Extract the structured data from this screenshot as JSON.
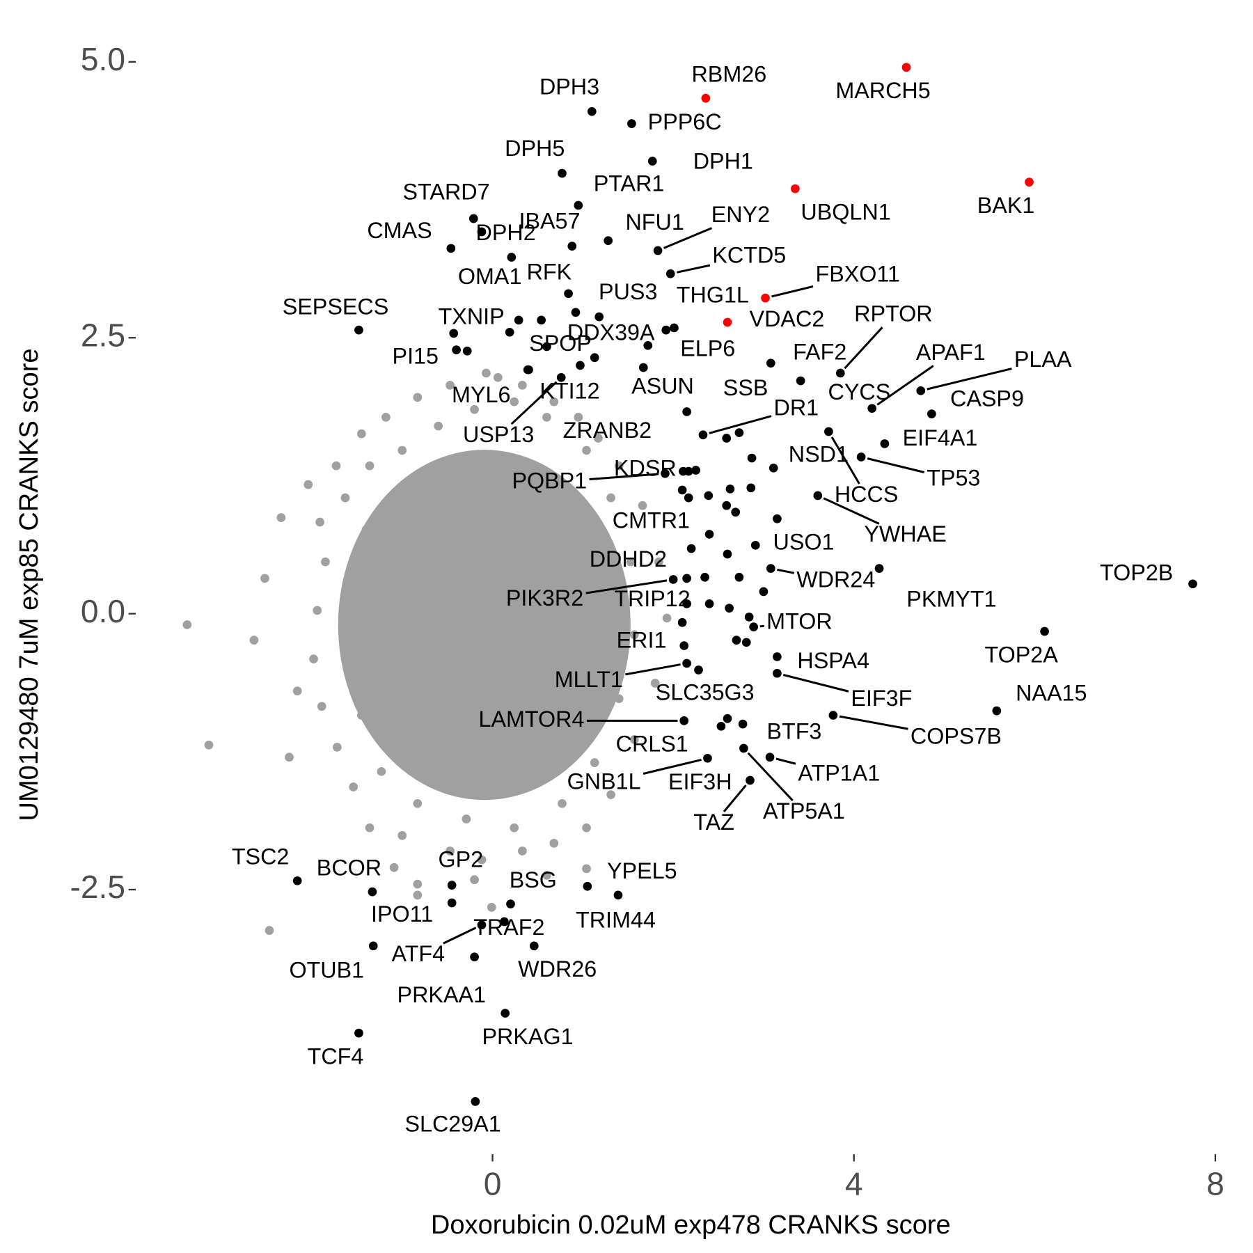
{
  "chart_data": {
    "type": "scatter",
    "xlabel": "Doxorubicin 0.02uM exp478 CRANKS score",
    "ylabel": "UM0129480 7uM exp85 CRANKS score",
    "xlim": [
      -3.94,
      8.15
    ],
    "ylim": [
      -4.81,
      5.12
    ],
    "xticks": [
      0,
      4,
      8
    ],
    "yticks": [
      {
        "value": 5,
        "label": "5.0"
      },
      2.5,
      {
        "value": 0,
        "label": "0.0"
      },
      -2.5
    ],
    "series": [
      {
        "color": "#a0a0a0",
        "x": [
          -3.38,
          -3.14,
          -2.47,
          -2.34,
          -2.04,
          -2.64,
          -2.52,
          -2.25,
          -2.16,
          -1.91,
          -1.73,
          -1.45,
          -1.18,
          -0.83,
          -0.47,
          -0.07,
          0.06,
          0.33,
          0.68,
          0.95,
          1.17,
          1.4,
          1.66,
          1.84,
          1.93,
          1.8,
          1.57,
          1.31,
          1.04,
          0.68,
          0.33,
          -0.12,
          -0.47,
          -0.83,
          -1.09,
          -1.36,
          -1.54,
          -1.72,
          -1.89,
          -1.98,
          -1.94,
          -1.85,
          -1.63,
          -1.36,
          -1.0,
          -0.6,
          -0.2,
          0.24,
          0.6,
          1.04,
          1.31,
          1.53,
          1.57,
          1.4,
          1.13,
          0.77,
          0.24,
          -0.29,
          -0.83,
          -1.23,
          -1.45,
          -1.63,
          -1.54,
          -1.4,
          1.04,
          -0.83,
          -0.01,
          0.6,
          -0.2,
          -1.0
        ],
        "y": [
          -0.1,
          -1.19,
          -2.87,
          0.87,
          1.17,
          -0.24,
          0.32,
          -1.3,
          -0.7,
          0.83,
          1.34,
          1.63,
          1.78,
          1.96,
          2.07,
          2.18,
          2.14,
          2.07,
          1.92,
          1.78,
          1.59,
          1.34,
          0.98,
          0.47,
          -0.04,
          -0.63,
          -1.14,
          -1.64,
          -1.94,
          -2.08,
          -2.15,
          -2.23,
          -2.15,
          -2.45,
          -2.3,
          -1.94,
          -1.57,
          -1.21,
          -0.84,
          -0.41,
          0.03,
          0.47,
          1.05,
          1.34,
          1.48,
          1.7,
          1.85,
          1.92,
          1.78,
          1.48,
          1.05,
          0.47,
          -0.19,
          -0.77,
          -1.35,
          -1.72,
          -1.94,
          -1.86,
          -1.72,
          -1.43,
          -0.92,
          -0.41,
          0.17,
          0.76,
          -2.31,
          -2.55,
          -2.66,
          -2.37,
          -2.41,
          -2.01
        ]
      },
      {
        "color": "#000000",
        "labels": [
          "DPH3",
          "PPP6C",
          "DPH1",
          "DPH5",
          "PTAR1",
          "STARD7",
          "IBA57",
          "DPH2",
          "CMAS",
          "NFU1",
          "ENY2",
          "KCTD5",
          "OMA1",
          "RFK",
          "THG1L",
          "PUS3",
          "ELP6",
          "DDX39A",
          "SEPSECS",
          "TXNIP",
          "PI15",
          "SPOP",
          "MYL6",
          "KTI12",
          "ASUN",
          "USP13",
          "ZRANB2",
          "SSB",
          "DR1",
          "FAF2",
          "RPTOR",
          "CYCS",
          "APAF1",
          "PLAA",
          "CASP9",
          "EIF4A1",
          "HCCS",
          "TP53",
          "NSD1",
          "YWHAE",
          "KDSR",
          "PQBP1",
          "CMTR1",
          "USO1",
          "WDR24",
          "DDHD2",
          "PIK3R2",
          "TRIP12",
          "PKMYT1",
          "TOP2B",
          "MTOR",
          "TOP2A",
          "NAA15",
          "ERI1",
          "MLLT1",
          "HSPA4",
          "EIF3F",
          "SLC35G3",
          "COPS7B",
          "LAMTOR4",
          "BTF3",
          "CRLS1",
          "ATP1A1",
          "ATP5A1",
          "EIF3H",
          "GNB1L",
          "TAZ",
          "TSC2",
          "BCOR",
          "GP2",
          "IPO11",
          "BSG",
          "YPEL5",
          "TRIM44",
          "TRAF2",
          "ATF4",
          "OTUB1",
          "WDR26",
          "PRKAA1",
          "PRKAG1",
          "TCF4",
          "SLC29A1"
        ],
        "x": [
          1.1,
          1.54,
          1.77,
          0.77,
          0.95,
          -0.21,
          0.88,
          -0.12,
          -0.46,
          1.28,
          1.83,
          1.97,
          0.21,
          0.84,
          2.01,
          1.18,
          1.92,
          1.72,
          -1.48,
          -0.43,
          -0.4,
          0.6,
          0.39,
          0.97,
          1.67,
          0.76,
          2.15,
          2.73,
          2.33,
          3.08,
          3.85,
          3.41,
          4.2,
          4.74,
          4.86,
          4.34,
          3.72,
          4.08,
          3.11,
          3.6,
          2.17,
          1.91,
          2.2,
          2.91,
          3.08,
          2.15,
          2.0,
          2.15,
          4.28,
          7.75,
          2.89,
          6.11,
          5.58,
          2.12,
          2.15,
          3.15,
          3.15,
          2.28,
          3.77,
          2.12,
          2.77,
          2.53,
          3.07,
          2.78,
          2.6,
          2.38,
          2.85,
          -2.16,
          -1.33,
          -0.45,
          -0.45,
          0.2,
          1.05,
          1.39,
          0.13,
          -0.12,
          -1.32,
          0.46,
          -0.2,
          0.14,
          -1.48,
          -0.19
        ],
        "y": [
          4.55,
          4.44,
          4.1,
          3.99,
          3.7,
          3.58,
          3.33,
          3.46,
          3.31,
          3.38,
          3.29,
          3.08,
          3.23,
          2.9,
          2.59,
          2.69,
          2.57,
          2.43,
          2.57,
          2.54,
          2.39,
          2.42,
          2.21,
          2.25,
          2.23,
          2.14,
          1.83,
          1.64,
          1.62,
          2.27,
          2.18,
          2.11,
          1.86,
          2.02,
          1.81,
          1.54,
          1.65,
          1.42,
          1.32,
          1.07,
          1.29,
          1.27,
          0.59,
          0.62,
          0.41,
          0.32,
          0.31,
          0.09,
          0.41,
          0.27,
          -0.12,
          -0.16,
          -0.88,
          -0.29,
          -0.45,
          -0.39,
          -0.54,
          -0.51,
          -0.92,
          -0.97,
          -1.0,
          -1.02,
          -1.3,
          -1.22,
          -0.95,
          -1.31,
          -1.51,
          -2.42,
          -2.52,
          -2.46,
          -2.62,
          -2.63,
          -2.47,
          -2.55,
          -2.79,
          -2.82,
          -3.01,
          -3.01,
          -3.11,
          -3.62,
          -3.8,
          -4.42
        ]
      },
      {
        "color": "#ff0000",
        "labels": [
          "RBM26",
          "MARCH5",
          "UBQLN1",
          "BAK1",
          "FBXO11",
          "VDAC2"
        ],
        "x": [
          2.36,
          4.58,
          3.35,
          5.94,
          3.02,
          2.6
        ],
        "y": [
          4.67,
          4.95,
          3.85,
          3.91,
          2.86,
          2.64
        ]
      },
      {
        "color": "#000000",
        "x": [
          0.54,
          0.29,
          0.92,
          0.19,
          1.13,
          0.4,
          -0.28,
          2.59,
          2.87,
          2.63,
          2.86,
          2.39,
          2.59,
          2.69,
          2.4,
          2.6,
          2.35,
          2.73,
          3.0,
          2.4,
          2.62,
          2.7,
          2.81,
          2.11,
          2.25,
          2.1,
          2.17,
          3.15,
          2.84,
          2.1
        ],
        "y": [
          2.66,
          2.66,
          2.73,
          2.55,
          2.32,
          2.21,
          2.38,
          1.59,
          1.41,
          1.13,
          1.14,
          1.07,
          0.98,
          0.92,
          0.72,
          0.54,
          0.33,
          0.33,
          0.2,
          0.09,
          0.05,
          -0.24,
          -0.26,
          1.29,
          1.3,
          1.12,
          1.05,
          0.86,
          -0.03,
          -0.08
        ]
      }
    ]
  }
}
